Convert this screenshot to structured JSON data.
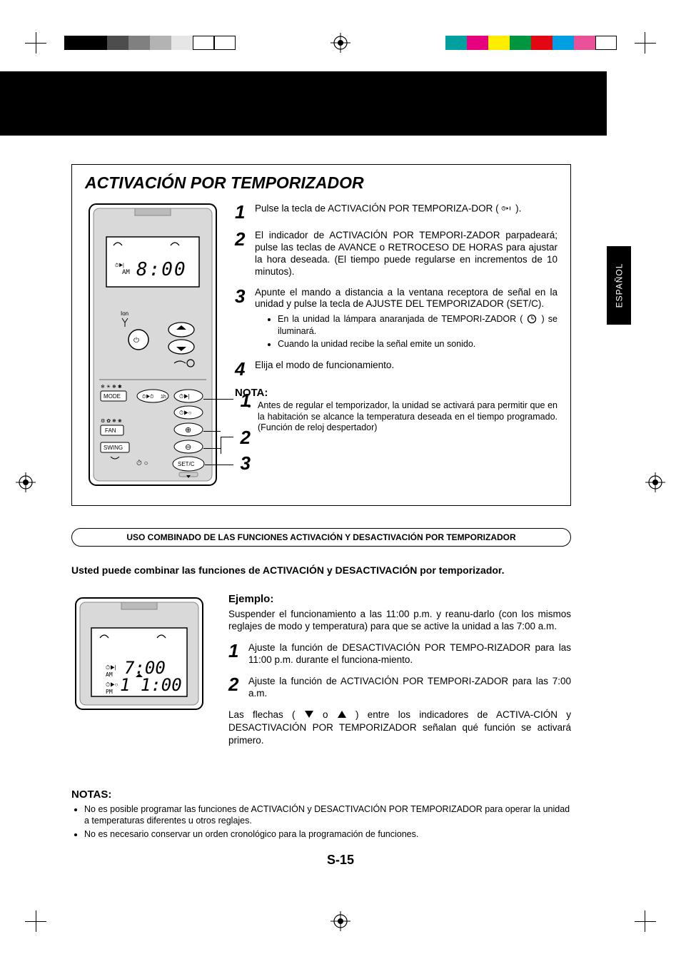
{
  "swatches_left": [
    "#000000",
    "#000000",
    "#4d4d4d",
    "#808080",
    "#b3b3b3",
    "#e6e6e6",
    "#ffffff",
    "#ffffff"
  ],
  "swatches_right": [
    "#00a0a0",
    "#e6007e",
    "#ffed00",
    "#009640",
    "#e30613",
    "#009fe3",
    "#ea5198",
    "#ffffff"
  ],
  "language_tab": "ESPAÑOL",
  "section_title": "ACTIVACIÓN POR TEMPORIZADOR",
  "remote_display_time": "8:00",
  "remote_ampm": "AM",
  "remote_ion_label": "Ion",
  "remote_mode_label": "MODE",
  "remote_fan_label": "FAN",
  "remote_swing_label": "SWING",
  "remote_setc_label": "SET/C",
  "remote_1h_label": "1h",
  "callouts": {
    "c1": "1",
    "c2": "2",
    "c3": "3"
  },
  "steps": {
    "s1_num": "1",
    "s1_text_a": "Pulse la tecla de ACTIVACIÓN POR TEMPORIZA-DOR ( ",
    "s1_text_b": " ).",
    "s2_num": "2",
    "s2_text": "El indicador de ACTIVACIÓN POR TEMPORI-ZADOR parpadeará; pulse las teclas de AVANCE o RETROCESO DE HORAS para ajustar la hora deseada. (El tiempo puede regularse en incrementos de 10 minutos).",
    "s3_num": "3",
    "s3_text": "Apunte el mando a distancia a la ventana receptora de señal en la unidad y pulse la tecla de AJUSTE DEL TEMPORIZADOR (SET/C).",
    "s3_b1_a": "En la unidad la lámpara anaranjada de TEMPORI-ZADOR ( ",
    "s3_b1_b": " ) se iluminará.",
    "s3_b2": "Cuando la unidad recibe la señal emite un sonido.",
    "s4_num": "4",
    "s4_text": "Elija el modo de funcionamiento."
  },
  "nota_label": "NOTA:",
  "nota_text": "Antes de regular el temporizador, la unidad se activará para permitir que en la habitación se alcance la temperatura deseada en el tiempo programado. (Función de reloj despertador)",
  "pill_text": "USO COMBINADO DE LAS FUNCIONES ACTIVACIÓN Y DESACTIVACIÓN POR TEMPORIZADOR",
  "combine_intro": "Usted puede combinar las funciones de ACTIVACIÓN y DESACTIVACIÓN por temporizador.",
  "example_label": "Ejemplo:",
  "example_intro": "Suspender el funcionamiento a las 11:00 p.m. y reanu-darlo (con los mismos reglajes de modo y temperatura) para que se active la unidad a las 7:00 a.m.",
  "ex_s1_num": "1",
  "ex_s1_text": "Ajuste la función de DESACTIVACIÓN POR TEMPO-RIZADOR para las 11:00 p.m. durante el funciona-miento.",
  "ex_s2_num": "2",
  "ex_s2_text": "Ajuste la función de ACTIVACIÓN POR TEMPORI-ZADOR para las 7:00 a.m.",
  "arrows_text_a": "Las flechas ( ",
  "arrows_text_b": " o ",
  "arrows_text_c": " ) entre los indicadores de ACTIVA-CIÓN y DESACTIVACIÓN POR TEMPORIZADOR señalan qué función se activará primero.",
  "mini_time1": "7:00",
  "mini_ampm1": "AM",
  "mini_time2": "1 1:00",
  "mini_ampm2": "PM",
  "notas_label": "NOTAS:",
  "notas_1": "No es posible programar las funciones de ACTIVACIÓN y DESACTIVACIÓN POR TEMPORIZADOR para operar la unidad a temperaturas diferentes u otros reglajes.",
  "notas_2": "No es necesario conservar un orden cronológico para la programación de funciones.",
  "page_number": "S-15",
  "timer_on_icon_label": "⏱▶ |"
}
